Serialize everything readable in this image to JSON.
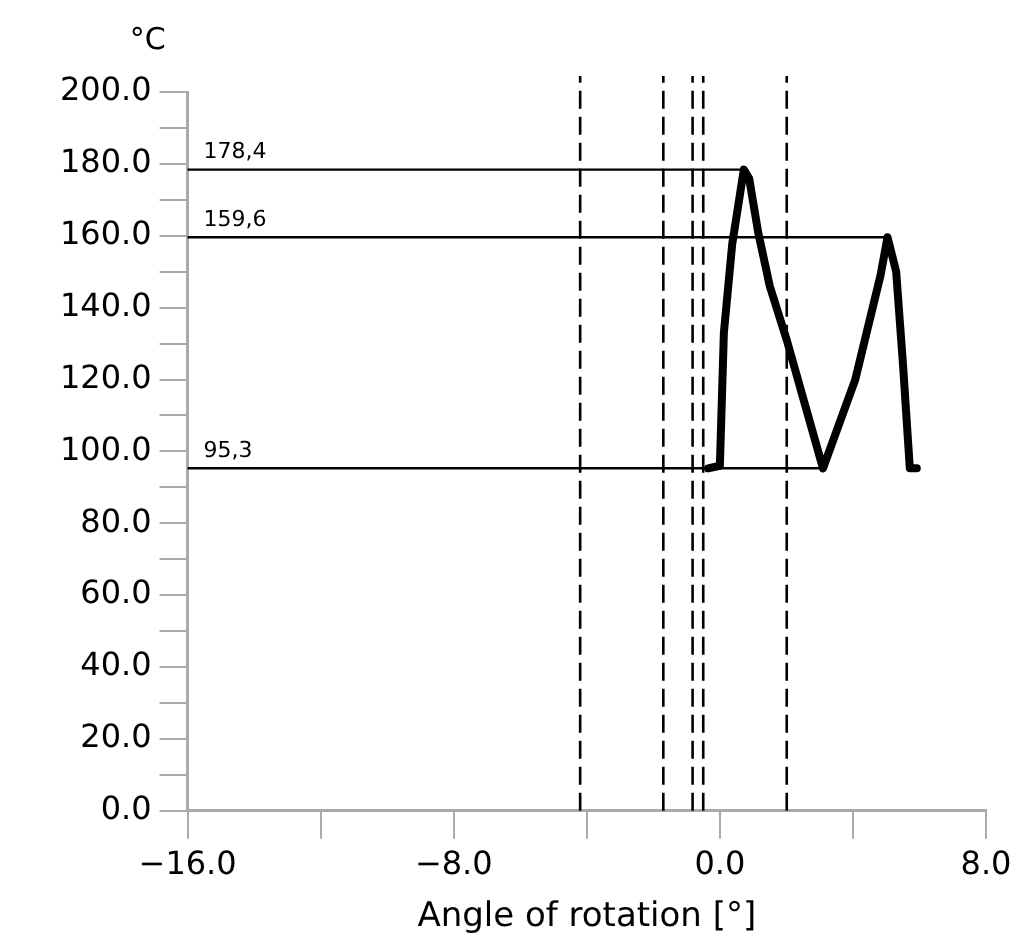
{
  "chart_data": {
    "type": "line",
    "xlabel": "Angle of rotation [°]",
    "ylabel": "°C",
    "series": [
      {
        "color": "#000000",
        "x": [
          -0.35,
          0.0,
          0.12,
          0.37,
          0.72,
          0.88,
          1.15,
          1.5,
          2.01,
          3.1,
          4.07,
          4.83,
          5.04,
          5.3,
          5.51,
          5.71,
          5.92
        ],
        "values": [
          95.3,
          96,
          133,
          157.6,
          178.4,
          176,
          161,
          146,
          131,
          95.3,
          120,
          149,
          159.6,
          150,
          123.5,
          95.3,
          95.3
        ]
      },
      {
        "color": "#000000",
        "x": [
          -16,
          0.72
        ],
        "values": [
          178.4,
          178.4
        ]
      },
      {
        "color": "#000000",
        "x": [
          -16,
          5.04
        ],
        "values": [
          159.6,
          159.6
        ]
      },
      {
        "color": "#000000",
        "x": [
          -16,
          3.1
        ],
        "values": [
          95.3,
          95.3
        ]
      }
    ],
    "annotations": [
      {
        "text": "178,4",
        "y": 178.4
      },
      {
        "text": "159,6",
        "y": 159.6
      },
      {
        "text": "95,3",
        "y": 95.3
      }
    ],
    "ref_lines": [
      {
        "axis": "x",
        "value": -4.2,
        "line_style": "dashed",
        "color": "#000000"
      },
      {
        "axis": "x",
        "value": -1.7,
        "line_style": "dashed",
        "color": "#000000"
      },
      {
        "axis": "x",
        "value": -0.82,
        "line_style": "dashed",
        "color": "#000000"
      },
      {
        "axis": "x",
        "value": -0.5,
        "line_style": "dashed",
        "color": "#000000"
      },
      {
        "axis": "x",
        "value": 2.01,
        "line_style": "dashed",
        "color": "#000000"
      }
    ],
    "xlim": [
      -16,
      8
    ],
    "xticks": [
      {
        "value": -16,
        "label": "−16.0"
      },
      {
        "value": -12,
        "label": null
      },
      {
        "value": -8,
        "label": "−8.0"
      },
      {
        "value": -4,
        "label": null
      },
      {
        "value": 0,
        "label": "0.0"
      },
      {
        "value": 4,
        "label": null
      },
      {
        "value": 8,
        "label": "8.0"
      }
    ],
    "ylim": [
      0,
      200
    ],
    "yticks": [
      {
        "value": 0,
        "label": "0.0"
      },
      {
        "value": 10,
        "label": null
      },
      {
        "value": 20,
        "label": "20.0"
      },
      {
        "value": 30,
        "label": null
      },
      {
        "value": 40,
        "label": "40.0"
      },
      {
        "value": 50,
        "label": null
      },
      {
        "value": 60,
        "label": "60.0"
      },
      {
        "value": 70,
        "label": null
      },
      {
        "value": 80,
        "label": "80.0"
      },
      {
        "value": 90,
        "label": null
      },
      {
        "value": 100,
        "label": "100.0"
      },
      {
        "value": 110,
        "label": null
      },
      {
        "value": 120,
        "label": "120.0"
      },
      {
        "value": 130,
        "label": null
      },
      {
        "value": 140,
        "label": "140.0"
      },
      {
        "value": 150,
        "label": null
      },
      {
        "value": 160,
        "label": "160.0"
      },
      {
        "value": 170,
        "label": null
      },
      {
        "value": 180,
        "label": "180.0"
      },
      {
        "value": 190,
        "label": null
      },
      {
        "value": 200,
        "label": "200.0"
      }
    ],
    "grid": false,
    "legend": false,
    "marker": "none",
    "line_style": "solid"
  }
}
